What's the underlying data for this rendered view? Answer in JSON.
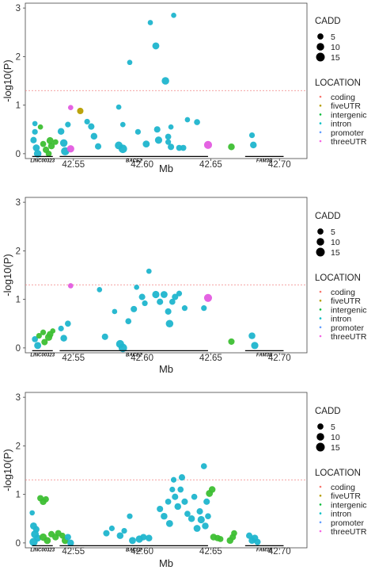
{
  "chart_data": [
    {
      "type": "scatter",
      "xlabel": "Mb",
      "ylabel": "-log10(P)",
      "xlim": [
        42.515,
        42.72
      ],
      "ylim": [
        -0.1,
        3.1
      ],
      "xticks": [
        42.55,
        42.6,
        42.65,
        42.7
      ],
      "xtick_labels": [
        "42.55",
        "42.60",
        "42.65",
        "42.70"
      ],
      "yticks": [
        0,
        1,
        2,
        3
      ],
      "ytick_labels": [
        "0",
        "1",
        "2",
        "3"
      ],
      "threshold": 1.3,
      "genes": [
        {
          "name": "LINC00323",
          "start": 42.52,
          "end": 42.535
        },
        {
          "name": "BACE2",
          "start": 42.54,
          "end": 42.648
        },
        {
          "name": "FAM3B",
          "start": 42.675,
          "end": 42.703
        }
      ],
      "points": [
        {
          "x": 42.522,
          "y": 0.62,
          "cadd": 3,
          "loc": "promoter"
        },
        {
          "x": 42.522,
          "y": 0.45,
          "cadd": 4,
          "loc": "promoter"
        },
        {
          "x": 42.521,
          "y": 0.28,
          "cadd": 6,
          "loc": "promoter"
        },
        {
          "x": 42.523,
          "y": 0.12,
          "cadd": 8,
          "loc": "promoter"
        },
        {
          "x": 42.524,
          "y": 0.0,
          "cadd": 10,
          "loc": "promoter"
        },
        {
          "x": 42.526,
          "y": 0.55,
          "cadd": 3,
          "loc": "intergenic"
        },
        {
          "x": 42.528,
          "y": 0.2,
          "cadd": 5,
          "loc": "intergenic"
        },
        {
          "x": 42.53,
          "y": 0.08,
          "cadd": 6,
          "loc": "intergenic"
        },
        {
          "x": 42.533,
          "y": 0.27,
          "cadd": 8,
          "loc": "intergenic"
        },
        {
          "x": 42.534,
          "y": 0.16,
          "cadd": 7,
          "loc": "intergenic"
        },
        {
          "x": 42.532,
          "y": 0.0,
          "cadd": 5,
          "loc": "intergenic"
        },
        {
          "x": 42.537,
          "y": 0.24,
          "cadd": 4,
          "loc": "intergenic"
        },
        {
          "x": 42.541,
          "y": 0.46,
          "cadd": 7,
          "loc": "promoter"
        },
        {
          "x": 42.543,
          "y": 0.22,
          "cadd": 10,
          "loc": "promoter"
        },
        {
          "x": 42.544,
          "y": 0.05,
          "cadd": 13,
          "loc": "promoter"
        },
        {
          "x": 42.546,
          "y": 0.6,
          "cadd": 4,
          "loc": "promoter"
        },
        {
          "x": 42.548,
          "y": 0.95,
          "cadd": 3,
          "loc": "threeUTR"
        },
        {
          "x": 42.548,
          "y": 0.1,
          "cadd": 9,
          "loc": "threeUTR"
        },
        {
          "x": 42.555,
          "y": 0.88,
          "cadd": 6,
          "loc": "fiveUTR"
        },
        {
          "x": 42.56,
          "y": 0.66,
          "cadd": 4,
          "loc": "promoter"
        },
        {
          "x": 42.563,
          "y": 0.56,
          "cadd": 6,
          "loc": "promoter"
        },
        {
          "x": 42.565,
          "y": 0.36,
          "cadd": 7,
          "loc": "promoter"
        },
        {
          "x": 42.568,
          "y": 0.15,
          "cadd": 6,
          "loc": "promoter"
        },
        {
          "x": 42.583,
          "y": 0.17,
          "cadd": 11,
          "loc": "promoter"
        },
        {
          "x": 42.586,
          "y": 0.1,
          "cadd": 14,
          "loc": "promoter"
        },
        {
          "x": 42.583,
          "y": 0.96,
          "cadd": 3,
          "loc": "promoter"
        },
        {
          "x": 42.586,
          "y": 0.6,
          "cadd": 3,
          "loc": "promoter"
        },
        {
          "x": 42.591,
          "y": 1.88,
          "cadd": 3,
          "loc": "promoter"
        },
        {
          "x": 42.597,
          "y": 0.45,
          "cadd": 4,
          "loc": "promoter"
        },
        {
          "x": 42.603,
          "y": 0.2,
          "cadd": 8,
          "loc": "promoter"
        },
        {
          "x": 42.606,
          "y": 2.7,
          "cadd": 3,
          "loc": "promoter"
        },
        {
          "x": 42.61,
          "y": 2.22,
          "cadd": 8,
          "loc": "promoter"
        },
        {
          "x": 42.611,
          "y": 0.5,
          "cadd": 6,
          "loc": "promoter"
        },
        {
          "x": 42.612,
          "y": 0.28,
          "cadd": 9,
          "loc": "promoter"
        },
        {
          "x": 42.617,
          "y": 1.5,
          "cadd": 10,
          "loc": "promoter"
        },
        {
          "x": 42.619,
          "y": 0.35,
          "cadd": 5,
          "loc": "promoter"
        },
        {
          "x": 42.619,
          "y": 0.24,
          "cadd": 4,
          "loc": "promoter"
        },
        {
          "x": 42.621,
          "y": 0.14,
          "cadd": 6,
          "loc": "promoter"
        },
        {
          "x": 42.621,
          "y": 0.55,
          "cadd": 3,
          "loc": "promoter"
        },
        {
          "x": 42.623,
          "y": 2.85,
          "cadd": 3,
          "loc": "promoter"
        },
        {
          "x": 42.627,
          "y": 0.12,
          "cadd": 5,
          "loc": "promoter"
        },
        {
          "x": 42.63,
          "y": 0.12,
          "cadd": 5,
          "loc": "promoter"
        },
        {
          "x": 42.633,
          "y": 0.7,
          "cadd": 3,
          "loc": "promoter"
        },
        {
          "x": 42.64,
          "y": 0.65,
          "cadd": 5,
          "loc": "promoter"
        },
        {
          "x": 42.648,
          "y": 0.18,
          "cadd": 12,
          "loc": "threeUTR"
        },
        {
          "x": 42.665,
          "y": 0.14,
          "cadd": 7,
          "loc": "intergenic"
        },
        {
          "x": 42.68,
          "y": 0.38,
          "cadd": 4,
          "loc": "promoter"
        },
        {
          "x": 42.681,
          "y": 0.18,
          "cadd": 7,
          "loc": "promoter"
        }
      ]
    },
    {
      "type": "scatter",
      "xlabel": "Mb",
      "ylabel": "-log10(P)",
      "xlim": [
        42.515,
        42.72
      ],
      "ylim": [
        -0.1,
        3.1
      ],
      "xticks": [
        42.55,
        42.6,
        42.65,
        42.7
      ],
      "xtick_labels": [
        "42.55",
        "42.60",
        "42.65",
        "42.70"
      ],
      "yticks": [
        0,
        1,
        2,
        3
      ],
      "ytick_labels": [
        "0",
        "1",
        "2",
        "3"
      ],
      "threshold": 1.3,
      "genes": [
        {
          "name": "LINC00323",
          "start": 42.52,
          "end": 42.535
        },
        {
          "name": "BACE2",
          "start": 42.54,
          "end": 42.648
        },
        {
          "name": "FAM3B",
          "start": 42.675,
          "end": 42.703
        }
      ],
      "points": [
        {
          "x": 42.522,
          "y": 0.18,
          "cadd": 5,
          "loc": "promoter"
        },
        {
          "x": 42.524,
          "y": 0.05,
          "cadd": 8,
          "loc": "promoter"
        },
        {
          "x": 42.525,
          "y": 0.25,
          "cadd": 4,
          "loc": "intergenic"
        },
        {
          "x": 42.528,
          "y": 0.32,
          "cadd": 4,
          "loc": "intergenic"
        },
        {
          "x": 42.529,
          "y": 0.12,
          "cadd": 6,
          "loc": "intergenic"
        },
        {
          "x": 42.532,
          "y": 0.22,
          "cadd": 9,
          "loc": "intergenic"
        },
        {
          "x": 42.533,
          "y": 0.28,
          "cadd": 7,
          "loc": "intergenic"
        },
        {
          "x": 42.535,
          "y": 0.35,
          "cadd": 3,
          "loc": "intergenic"
        },
        {
          "x": 42.541,
          "y": 0.4,
          "cadd": 4,
          "loc": "promoter"
        },
        {
          "x": 42.543,
          "y": 0.2,
          "cadd": 7,
          "loc": "promoter"
        },
        {
          "x": 42.546,
          "y": 0.5,
          "cadd": 5,
          "loc": "promoter"
        },
        {
          "x": 42.548,
          "y": 1.28,
          "cadd": 3,
          "loc": "threeUTR"
        },
        {
          "x": 42.569,
          "y": 1.2,
          "cadd": 3,
          "loc": "promoter"
        },
        {
          "x": 42.573,
          "y": 0.23,
          "cadd": 6,
          "loc": "promoter"
        },
        {
          "x": 42.58,
          "y": 0.75,
          "cadd": 3,
          "loc": "promoter"
        },
        {
          "x": 42.584,
          "y": 0.08,
          "cadd": 12,
          "loc": "promoter"
        },
        {
          "x": 42.586,
          "y": 0.0,
          "cadd": 14,
          "loc": "promoter"
        },
        {
          "x": 42.59,
          "y": 0.55,
          "cadd": 5,
          "loc": "promoter"
        },
        {
          "x": 42.594,
          "y": 0.8,
          "cadd": 6,
          "loc": "promoter"
        },
        {
          "x": 42.596,
          "y": 1.25,
          "cadd": 3,
          "loc": "promoter"
        },
        {
          "x": 42.6,
          "y": 1.05,
          "cadd": 6,
          "loc": "promoter"
        },
        {
          "x": 42.602,
          "y": 0.92,
          "cadd": 4,
          "loc": "promoter"
        },
        {
          "x": 42.605,
          "y": 1.58,
          "cadd": 3,
          "loc": "promoter"
        },
        {
          "x": 42.61,
          "y": 1.1,
          "cadd": 9,
          "loc": "promoter"
        },
        {
          "x": 42.613,
          "y": 0.95,
          "cadd": 6,
          "loc": "promoter"
        },
        {
          "x": 42.616,
          "y": 1.1,
          "cadd": 8,
          "loc": "promoter"
        },
        {
          "x": 42.619,
          "y": 0.75,
          "cadd": 6,
          "loc": "promoter"
        },
        {
          "x": 42.62,
          "y": 0.5,
          "cadd": 10,
          "loc": "promoter"
        },
        {
          "x": 42.622,
          "y": 0.95,
          "cadd": 5,
          "loc": "promoter"
        },
        {
          "x": 42.624,
          "y": 1.05,
          "cadd": 6,
          "loc": "promoter"
        },
        {
          "x": 42.627,
          "y": 1.12,
          "cadd": 4,
          "loc": "promoter"
        },
        {
          "x": 42.631,
          "y": 0.82,
          "cadd": 4,
          "loc": "promoter"
        },
        {
          "x": 42.645,
          "y": 0.82,
          "cadd": 4,
          "loc": "promoter"
        },
        {
          "x": 42.648,
          "y": 1.03,
          "cadd": 12,
          "loc": "threeUTR"
        },
        {
          "x": 42.665,
          "y": 0.13,
          "cadd": 6,
          "loc": "intergenic"
        },
        {
          "x": 42.68,
          "y": 0.25,
          "cadd": 7,
          "loc": "promoter"
        },
        {
          "x": 42.682,
          "y": 0.05,
          "cadd": 9,
          "loc": "promoter"
        }
      ]
    },
    {
      "type": "scatter",
      "xlabel": "Mb",
      "ylabel": "-log10(P)",
      "xlim": [
        42.515,
        42.72
      ],
      "ylim": [
        -0.1,
        3.1
      ],
      "xticks": [
        42.55,
        42.6,
        42.65,
        42.7
      ],
      "xtick_labels": [
        "42.55",
        "42.60",
        "42.65",
        "42.70"
      ],
      "yticks": [
        0,
        1,
        2,
        3
      ],
      "ytick_labels": [
        "0",
        "1",
        "2",
        "3"
      ],
      "threshold": 1.3,
      "genes": [
        {
          "name": "LINC00323",
          "start": 42.52,
          "end": 42.535
        },
        {
          "name": "BACE2",
          "start": 42.54,
          "end": 42.648
        },
        {
          "name": "FAM3B",
          "start": 42.675,
          "end": 42.703
        }
      ],
      "points": [
        {
          "x": 42.52,
          "y": 0.62,
          "cadd": 3,
          "loc": "promoter"
        },
        {
          "x": 42.521,
          "y": 0.35,
          "cadd": 8,
          "loc": "promoter"
        },
        {
          "x": 42.522,
          "y": 0.18,
          "cadd": 11,
          "loc": "promoter"
        },
        {
          "x": 42.521,
          "y": 0.02,
          "cadd": 13,
          "loc": "promoter"
        },
        {
          "x": 42.523,
          "y": 0.28,
          "cadd": 6,
          "loc": "promoter"
        },
        {
          "x": 42.524,
          "y": 0.1,
          "cadd": 8,
          "loc": "promoter"
        },
        {
          "x": 42.526,
          "y": 0.92,
          "cadd": 6,
          "loc": "intergenic"
        },
        {
          "x": 42.528,
          "y": 0.85,
          "cadd": 7,
          "loc": "intergenic"
        },
        {
          "x": 42.53,
          "y": 0.9,
          "cadd": 5,
          "loc": "intergenic"
        },
        {
          "x": 42.528,
          "y": 0.12,
          "cadd": 9,
          "loc": "intergenic"
        },
        {
          "x": 42.531,
          "y": 0.05,
          "cadd": 8,
          "loc": "intergenic"
        },
        {
          "x": 42.534,
          "y": 0.18,
          "cadd": 6,
          "loc": "intergenic"
        },
        {
          "x": 42.537,
          "y": 0.12,
          "cadd": 7,
          "loc": "intergenic"
        },
        {
          "x": 42.539,
          "y": 0.2,
          "cadd": 6,
          "loc": "intergenic"
        },
        {
          "x": 42.542,
          "y": 0.15,
          "cadd": 5,
          "loc": "intergenic"
        },
        {
          "x": 42.544,
          "y": 0.05,
          "cadd": 8,
          "loc": "intergenic"
        },
        {
          "x": 42.546,
          "y": 0.12,
          "cadd": 6,
          "loc": "promoter"
        },
        {
          "x": 42.548,
          "y": 0.0,
          "cadd": 7,
          "loc": "promoter"
        },
        {
          "x": 42.574,
          "y": 0.2,
          "cadd": 6,
          "loc": "promoter"
        },
        {
          "x": 42.578,
          "y": 0.3,
          "cadd": 4,
          "loc": "promoter"
        },
        {
          "x": 42.584,
          "y": 0.15,
          "cadd": 7,
          "loc": "promoter"
        },
        {
          "x": 42.587,
          "y": 0.25,
          "cadd": 4,
          "loc": "promoter"
        },
        {
          "x": 42.591,
          "y": 0.55,
          "cadd": 4,
          "loc": "promoter"
        },
        {
          "x": 42.593,
          "y": 0.05,
          "cadd": 8,
          "loc": "promoter"
        },
        {
          "x": 42.598,
          "y": 0.08,
          "cadd": 9,
          "loc": "promoter"
        },
        {
          "x": 42.601,
          "y": 0.12,
          "cadd": 6,
          "loc": "promoter"
        },
        {
          "x": 42.605,
          "y": 0.1,
          "cadd": 7,
          "loc": "promoter"
        },
        {
          "x": 42.613,
          "y": 0.7,
          "cadd": 6,
          "loc": "promoter"
        },
        {
          "x": 42.616,
          "y": 0.55,
          "cadd": 7,
          "loc": "promoter"
        },
        {
          "x": 42.619,
          "y": 0.85,
          "cadd": 5,
          "loc": "promoter"
        },
        {
          "x": 42.62,
          "y": 0.4,
          "cadd": 8,
          "loc": "promoter"
        },
        {
          "x": 42.622,
          "y": 1.1,
          "cadd": 4,
          "loc": "promoter"
        },
        {
          "x": 42.623,
          "y": 1.3,
          "cadd": 4,
          "loc": "promoter"
        },
        {
          "x": 42.624,
          "y": 0.95,
          "cadd": 6,
          "loc": "promoter"
        },
        {
          "x": 42.626,
          "y": 0.75,
          "cadd": 7,
          "loc": "promoter"
        },
        {
          "x": 42.628,
          "y": 1.1,
          "cadd": 5,
          "loc": "promoter"
        },
        {
          "x": 42.629,
          "y": 1.35,
          "cadd": 6,
          "loc": "promoter"
        },
        {
          "x": 42.631,
          "y": 0.85,
          "cadd": 6,
          "loc": "promoter"
        },
        {
          "x": 42.633,
          "y": 0.6,
          "cadd": 5,
          "loc": "promoter"
        },
        {
          "x": 42.636,
          "y": 0.5,
          "cadd": 7,
          "loc": "promoter"
        },
        {
          "x": 42.638,
          "y": 0.95,
          "cadd": 5,
          "loc": "promoter"
        },
        {
          "x": 42.64,
          "y": 0.3,
          "cadd": 8,
          "loc": "promoter"
        },
        {
          "x": 42.642,
          "y": 0.65,
          "cadd": 6,
          "loc": "promoter"
        },
        {
          "x": 42.643,
          "y": 0.48,
          "cadd": 9,
          "loc": "promoter"
        },
        {
          "x": 42.645,
          "y": 1.58,
          "cadd": 5,
          "loc": "promoter"
        },
        {
          "x": 42.646,
          "y": 0.35,
          "cadd": 7,
          "loc": "promoter"
        },
        {
          "x": 42.647,
          "y": 0.85,
          "cadd": 6,
          "loc": "promoter"
        },
        {
          "x": 42.648,
          "y": 0.55,
          "cadd": 5,
          "loc": "promoter"
        },
        {
          "x": 42.649,
          "y": 1.02,
          "cadd": 8,
          "loc": "intergenic"
        },
        {
          "x": 42.651,
          "y": 1.1,
          "cadd": 7,
          "loc": "intergenic"
        },
        {
          "x": 42.652,
          "y": 0.12,
          "cadd": 7,
          "loc": "intergenic"
        },
        {
          "x": 42.655,
          "y": 0.1,
          "cadd": 6,
          "loc": "intergenic"
        },
        {
          "x": 42.657,
          "y": 0.08,
          "cadd": 5,
          "loc": "intergenic"
        },
        {
          "x": 42.664,
          "y": 0.05,
          "cadd": 7,
          "loc": "intergenic"
        },
        {
          "x": 42.666,
          "y": 0.12,
          "cadd": 6,
          "loc": "intergenic"
        },
        {
          "x": 42.667,
          "y": 0.2,
          "cadd": 5,
          "loc": "intergenic"
        },
        {
          "x": 42.678,
          "y": 0.15,
          "cadd": 6,
          "loc": "promoter"
        },
        {
          "x": 42.68,
          "y": 0.05,
          "cadd": 7,
          "loc": "promoter"
        },
        {
          "x": 42.682,
          "y": 0.1,
          "cadd": 8,
          "loc": "promoter"
        },
        {
          "x": 42.684,
          "y": 0.02,
          "cadd": 6,
          "loc": "promoter"
        }
      ]
    }
  ],
  "legend": {
    "cadd_title": "CADD",
    "cadd_labels": [
      "5",
      "10",
      "15"
    ],
    "cadd_values": [
      5,
      10,
      15
    ],
    "location_title": "LOCATION",
    "location_labels": [
      "coding",
      "fiveUTR",
      "intergenic",
      "intron",
      "promoter",
      "threeUTR"
    ],
    "location_colors": [
      "#F8766D",
      "#B79F00",
      "#00BA38",
      "#00BFC4",
      "#619CFF",
      "#F564E3"
    ]
  },
  "colors": {
    "coding": "#F8766D",
    "fiveUTR": "#B79F00",
    "intergenic": "#3DBF33",
    "intron": "#00BFC4",
    "promoter": "#1FB5CE",
    "threeUTR": "#E35BE0",
    "threshold": "#F08080"
  }
}
